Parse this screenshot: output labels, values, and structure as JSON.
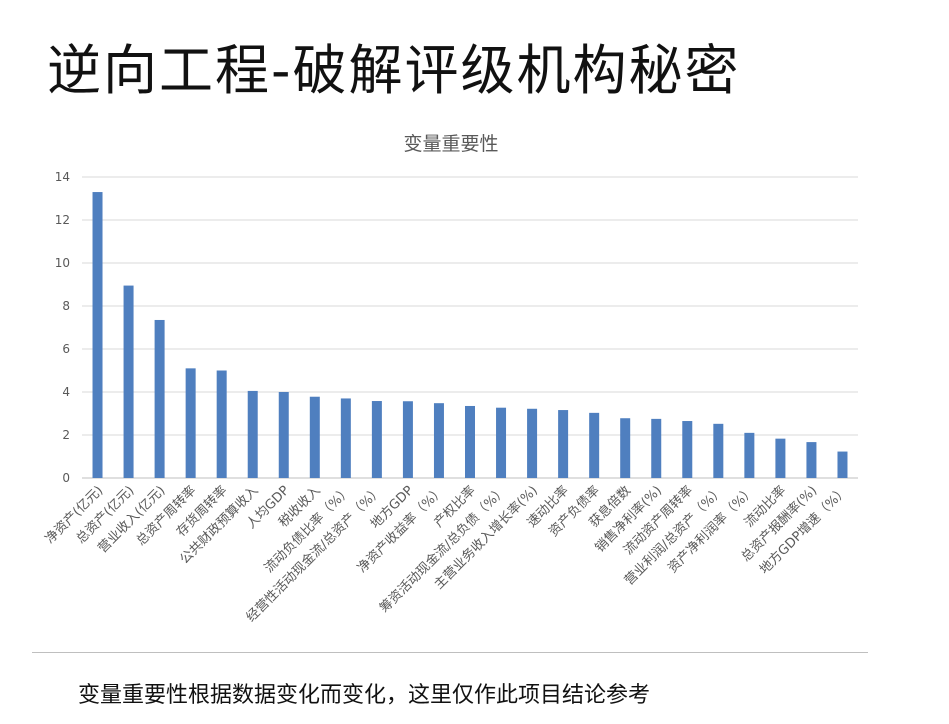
{
  "slide": {
    "title": "逆向工程-破解评级机构秘密",
    "caption": "变量重要性根据数据变化而变化，这里仅作此项目结论参考"
  },
  "colors": {
    "bar": "#4f7fbf",
    "grid": "#d9d9d9",
    "text": "#595959"
  },
  "chart_data": {
    "type": "bar",
    "title": "变量重要性",
    "xlabel": "",
    "ylabel": "",
    "ylim": [
      0,
      14
    ],
    "yticks": [
      0,
      2,
      4,
      6,
      8,
      10,
      12,
      14
    ],
    "grid": true,
    "legend": "none",
    "categories": [
      "净资产(亿元)",
      "总资产(亿元)",
      "营业收入(亿元)",
      "总资产周转率",
      "存货周转率",
      "公共财政预算收入",
      "人均GDP",
      "税收收入",
      "流动负债比率（%）",
      "经营性活动现金流/总资产（%）",
      "地方GDP",
      "净资产收益率（%）",
      "产权比率",
      "筹资活动现金流/总负债（%）",
      "主营业务收入增长率(%)",
      "速动比率",
      "资产负债率",
      "获息倍数",
      "销售净利率(%)",
      "流动资产周转率",
      "营业利润/总资产（%）",
      "资产净利润率（%）",
      "流动比率",
      "总资产报酬率(%)",
      "地方GDP增速（%）"
    ],
    "values": [
      13.3,
      8.95,
      7.35,
      5.1,
      5.0,
      4.05,
      4.0,
      3.78,
      3.7,
      3.58,
      3.57,
      3.48,
      3.35,
      3.27,
      3.22,
      3.16,
      3.03,
      2.78,
      2.75,
      2.65,
      2.52,
      2.1,
      1.83,
      1.67,
      1.23
    ]
  }
}
